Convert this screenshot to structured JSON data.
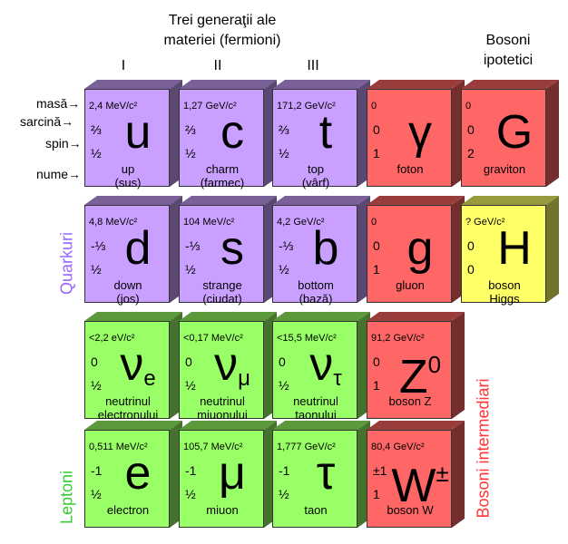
{
  "headers": {
    "fermions": "Trei generaţii ale\nmateriei (fermioni)",
    "gen1": "I",
    "gen2": "II",
    "gen3": "III",
    "hypothetical": "Bosoni\nipotetici"
  },
  "row_labels": {
    "mass": "masă→",
    "charge": "sarcină→",
    "spin": "spin→",
    "name": "nume→"
  },
  "groups": {
    "quarks": "Quarkuri",
    "leptons": "Leptoni",
    "gauge_bosons": "Bosoni intermediari"
  },
  "particles": {
    "up": {
      "mass": "2,4 MeV/c²",
      "charge": "⅔",
      "spin": "½",
      "symbol": "u",
      "name": "up\n(sus)"
    },
    "charm": {
      "mass": "1,27 GeV/c²",
      "charge": "⅔",
      "spin": "½",
      "symbol": "c",
      "name": "charm\n(farmec)"
    },
    "top": {
      "mass": "171,2 GeV/c²",
      "charge": "⅔",
      "spin": "½",
      "symbol": "t",
      "name": "top\n(vârf)"
    },
    "photon": {
      "mass": "0",
      "charge": "0",
      "spin": "1",
      "symbol": "γ",
      "name": "foton"
    },
    "graviton": {
      "mass": "0",
      "charge": "0",
      "spin": "2",
      "symbol": "G",
      "name": "graviton"
    },
    "down": {
      "mass": "4,8 MeV/c²",
      "charge": "-⅓",
      "spin": "½",
      "symbol": "d",
      "name": "down\n(jos)"
    },
    "strange": {
      "mass": "104 MeV/c²",
      "charge": "-⅓",
      "spin": "½",
      "symbol": "s",
      "name": "strange\n(ciudat)"
    },
    "bottom": {
      "mass": "4,2 GeV/c²",
      "charge": "-⅓",
      "spin": "½",
      "symbol": "b",
      "name": "bottom\n(bază)"
    },
    "gluon": {
      "mass": "0",
      "charge": "0",
      "spin": "1",
      "symbol": "g",
      "name": "gluon"
    },
    "higgs": {
      "mass": "? GeV/c²",
      "charge": "0",
      "spin": "0",
      "symbol": "H",
      "name": "boson\nHiggs"
    },
    "nu_e": {
      "mass": "<2,2 eV/c²",
      "charge": "0",
      "spin": "½",
      "symbol": "ν",
      "sub": "e",
      "name": "neutrinul\nelectronului"
    },
    "nu_mu": {
      "mass": "<0,17 MeV/c²",
      "charge": "0",
      "spin": "½",
      "symbol": "ν",
      "sub": "μ",
      "name": "neutrinul\nmiuonului"
    },
    "nu_tau": {
      "mass": "<15,5 MeV/c²",
      "charge": "0",
      "spin": "½",
      "symbol": "ν",
      "sub": "τ",
      "name": "neutrinul\ntaonului"
    },
    "z": {
      "mass": "91,2 GeV/c²",
      "charge": "0",
      "spin": "1",
      "symbol": "Z",
      "sup": "0",
      "name": "boson Z"
    },
    "electron": {
      "mass": "0,511 MeV/c²",
      "charge": "-1",
      "spin": "½",
      "symbol": "e",
      "name": "electron"
    },
    "muon": {
      "mass": "105,7 MeV/c²",
      "charge": "-1",
      "spin": "½",
      "symbol": "μ",
      "name": "miuon"
    },
    "tau": {
      "mass": "1,777 GeV/c²",
      "charge": "-1",
      "spin": "½",
      "symbol": "τ",
      "name": "taon"
    },
    "w": {
      "mass": "80,4 GeV/c²",
      "charge": "±1",
      "spin": "1",
      "symbol": "W",
      "sup": "±",
      "name": "boson W"
    }
  },
  "colors": {
    "quark": "#c9a0ff",
    "lepton": "#99ff66",
    "boson": "#ff6666",
    "higgs": "#ffff66",
    "quark_label": "#9966ff",
    "lepton_label": "#33cc33",
    "boson_label": "#ff3333"
  }
}
